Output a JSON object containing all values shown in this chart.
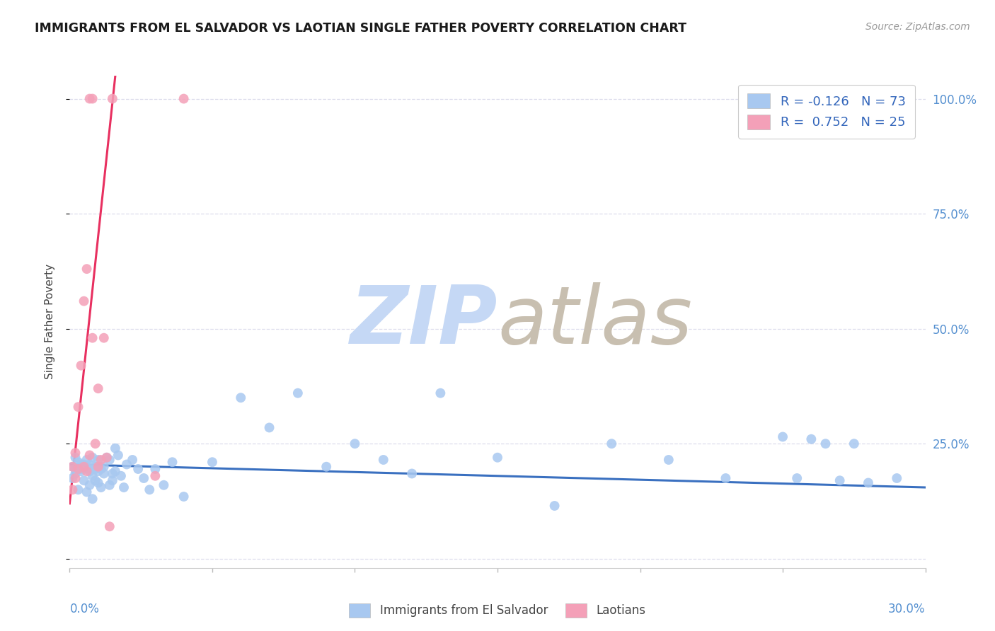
{
  "title": "IMMIGRANTS FROM EL SALVADOR VS LAOTIAN SINGLE FATHER POVERTY CORRELATION CHART",
  "source": "Source: ZipAtlas.com",
  "ylabel": "Single Father Poverty",
  "R_blue": -0.126,
  "N_blue": 73,
  "R_pink": 0.752,
  "N_pink": 25,
  "blue_scatter_color": "#a8c8f0",
  "pink_scatter_color": "#f4a0b8",
  "blue_line_color": "#3a70c0",
  "pink_line_color": "#e83060",
  "y_ticks": [
    0.0,
    0.25,
    0.5,
    0.75,
    1.0
  ],
  "y_tick_labels": [
    "",
    "25.0%",
    "50.0%",
    "75.0%",
    "100.0%"
  ],
  "xlim": [
    0.0,
    0.3
  ],
  "ylim": [
    -0.02,
    1.05
  ],
  "grid_color": "#dcdcec",
  "axis_label_color": "#5590d0",
  "title_color": "#1a1a1a",
  "source_color": "#999999",
  "watermark_zip_color": "#c5d8f5",
  "watermark_atlas_color": "#c8bfb0",
  "legend_label_blue": "Immigrants from El Salvador",
  "legend_label_pink": "Laotians",
  "blue_trend_x0": 0.0,
  "blue_trend_y0": 0.205,
  "blue_trend_x1": 0.3,
  "blue_trend_y1": 0.155,
  "pink_trend_x0": 0.0,
  "pink_trend_y0": 0.12,
  "pink_trend_x1": 0.016,
  "pink_trend_y1": 1.05,
  "blue_x": [
    0.001,
    0.001,
    0.002,
    0.002,
    0.002,
    0.003,
    0.003,
    0.004,
    0.004,
    0.004,
    0.005,
    0.005,
    0.006,
    0.006,
    0.006,
    0.007,
    0.007,
    0.007,
    0.007,
    0.008,
    0.008,
    0.008,
    0.009,
    0.009,
    0.009,
    0.01,
    0.01,
    0.01,
    0.011,
    0.011,
    0.012,
    0.012,
    0.013,
    0.014,
    0.014,
    0.015,
    0.015,
    0.016,
    0.016,
    0.017,
    0.018,
    0.019,
    0.02,
    0.022,
    0.024,
    0.026,
    0.028,
    0.03,
    0.033,
    0.036,
    0.04,
    0.05,
    0.06,
    0.07,
    0.08,
    0.09,
    0.1,
    0.11,
    0.12,
    0.13,
    0.15,
    0.17,
    0.19,
    0.21,
    0.23,
    0.25,
    0.255,
    0.26,
    0.265,
    0.27,
    0.275,
    0.28,
    0.29
  ],
  "blue_y": [
    0.2,
    0.175,
    0.22,
    0.185,
    0.195,
    0.15,
    0.21,
    0.195,
    0.205,
    0.19,
    0.17,
    0.205,
    0.145,
    0.215,
    0.2,
    0.16,
    0.19,
    0.205,
    0.195,
    0.22,
    0.18,
    0.13,
    0.2,
    0.17,
    0.195,
    0.165,
    0.215,
    0.19,
    0.155,
    0.195,
    0.2,
    0.185,
    0.22,
    0.16,
    0.215,
    0.17,
    0.185,
    0.24,
    0.19,
    0.225,
    0.18,
    0.155,
    0.205,
    0.215,
    0.195,
    0.175,
    0.15,
    0.195,
    0.16,
    0.21,
    0.135,
    0.21,
    0.35,
    0.285,
    0.36,
    0.2,
    0.25,
    0.215,
    0.185,
    0.36,
    0.22,
    0.115,
    0.25,
    0.215,
    0.175,
    0.265,
    0.175,
    0.26,
    0.25,
    0.17,
    0.25,
    0.165,
    0.175
  ],
  "pink_x": [
    0.001,
    0.001,
    0.002,
    0.002,
    0.003,
    0.003,
    0.004,
    0.005,
    0.005,
    0.006,
    0.006,
    0.007,
    0.007,
    0.008,
    0.008,
    0.009,
    0.01,
    0.01,
    0.011,
    0.012,
    0.013,
    0.014,
    0.015,
    0.03,
    0.04
  ],
  "pink_y": [
    0.2,
    0.15,
    0.23,
    0.175,
    0.33,
    0.195,
    0.42,
    0.2,
    0.56,
    0.63,
    0.19,
    0.225,
    1.0,
    1.0,
    0.48,
    0.25,
    0.2,
    0.37,
    0.215,
    0.48,
    0.22,
    0.07,
    1.0,
    0.18,
    1.0
  ]
}
